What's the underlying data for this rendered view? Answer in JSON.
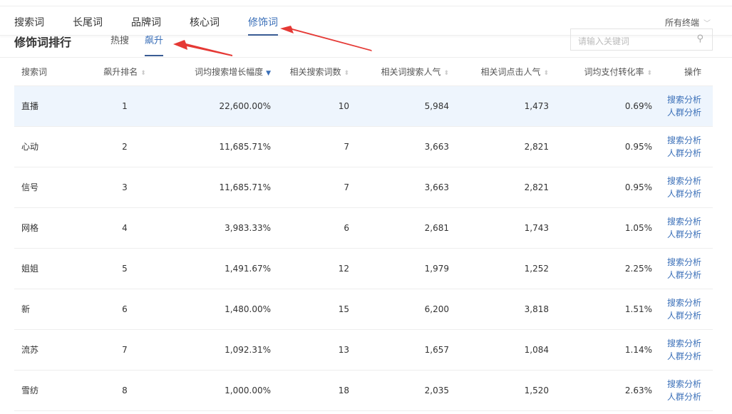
{
  "nav": {
    "tabs": [
      "搜索词",
      "长尾词",
      "品牌词",
      "核心词",
      "修饰词"
    ],
    "active": 4,
    "terminal": "所有终端"
  },
  "section": {
    "title": "修饰词排行",
    "subtabs": [
      "热搜",
      "飙升"
    ],
    "active_subtab": 1,
    "search_placeholder": "请输入关键词"
  },
  "table": {
    "headers": [
      "搜索词",
      "飙升排名",
      "词均搜索增长幅度",
      "相关搜索词数",
      "相关词搜索人气",
      "相关词点击人气",
      "词均支付转化率",
      "操作"
    ],
    "sorted_column": 2,
    "action_labels": [
      "搜索分析",
      "人群分析"
    ],
    "rows": [
      [
        "直播",
        "1",
        "22,600.00%",
        "10",
        "5,984",
        "1,473",
        "0.69%"
      ],
      [
        "心动",
        "2",
        "11,685.71%",
        "7",
        "3,663",
        "2,821",
        "0.95%"
      ],
      [
        "信号",
        "3",
        "11,685.71%",
        "7",
        "3,663",
        "2,821",
        "0.95%"
      ],
      [
        "网格",
        "4",
        "3,983.33%",
        "6",
        "2,681",
        "1,743",
        "1.05%"
      ],
      [
        "姐姐",
        "5",
        "1,491.67%",
        "12",
        "1,979",
        "1,252",
        "2.25%"
      ],
      [
        "新",
        "6",
        "1,480.00%",
        "15",
        "6,200",
        "3,818",
        "1.51%"
      ],
      [
        "流苏",
        "7",
        "1,092.31%",
        "13",
        "1,657",
        "1,084",
        "1.14%"
      ],
      [
        "雪纺",
        "8",
        "1,000.00%",
        "18",
        "2,035",
        "1,520",
        "2.63%"
      ]
    ]
  },
  "colors": {
    "accent": "#3a6fb8",
    "highlight_row": "#eef5fd",
    "annotation_arrow": "#e53935"
  }
}
